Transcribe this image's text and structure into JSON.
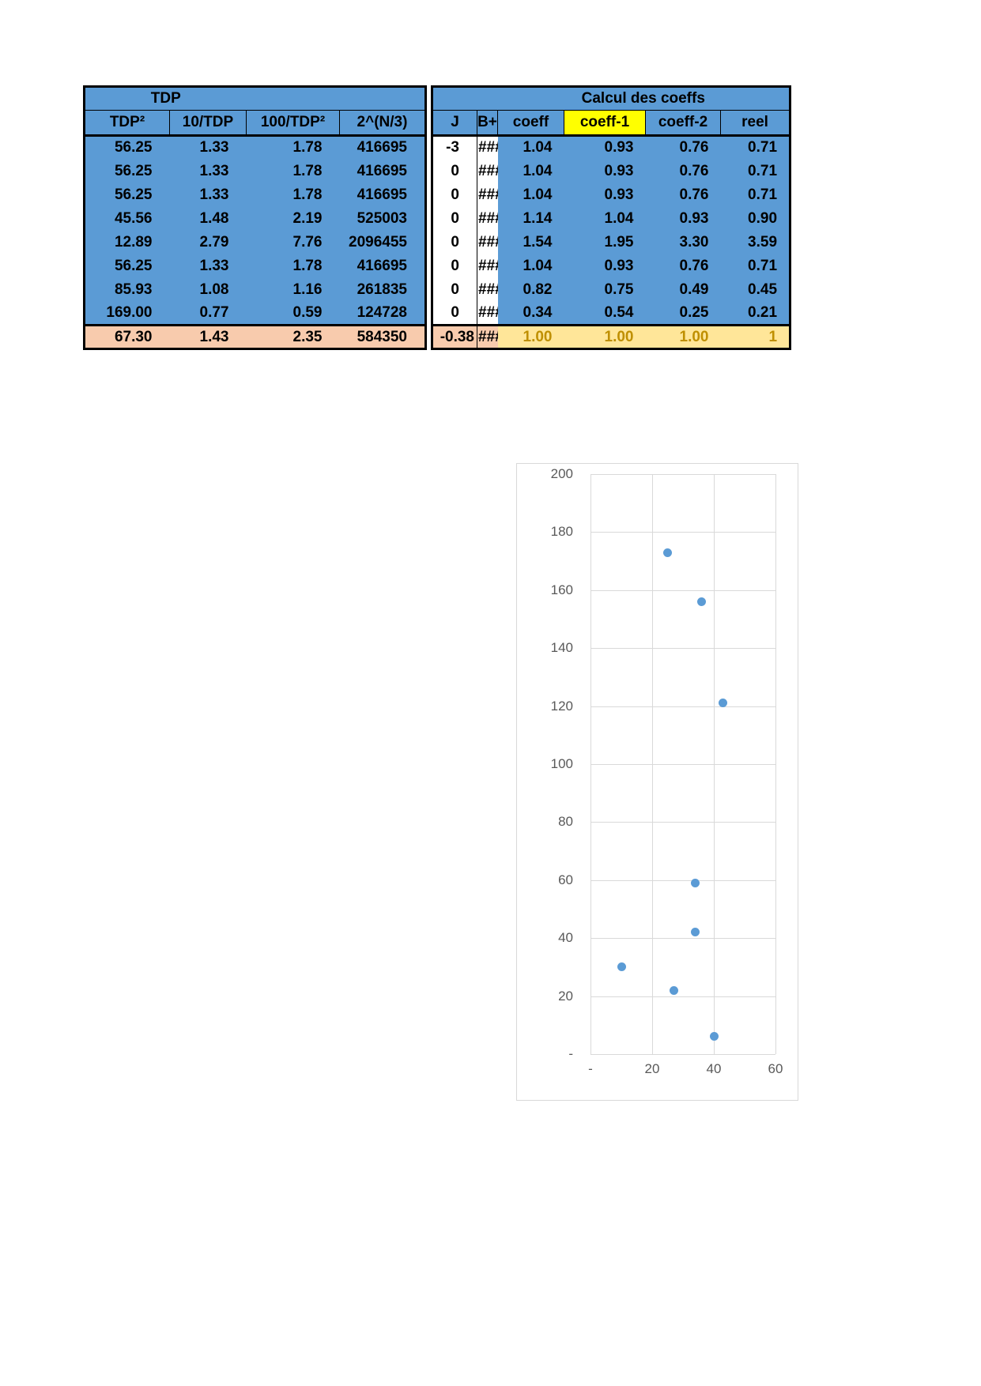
{
  "left_table": {
    "title": "TDP",
    "headers": [
      "TDP²",
      "10/TDP",
      "100/TDP²",
      "2^(N/3)"
    ],
    "rows": [
      [
        "56.25",
        "1.33",
        "1.78",
        "416695"
      ],
      [
        "56.25",
        "1.33",
        "1.78",
        "416695"
      ],
      [
        "56.25",
        "1.33",
        "1.78",
        "416695"
      ],
      [
        "45.56",
        "1.48",
        "2.19",
        "525003"
      ],
      [
        "12.89",
        "2.79",
        "7.76",
        "2096455"
      ],
      [
        "56.25",
        "1.33",
        "1.78",
        "416695"
      ],
      [
        "85.93",
        "1.08",
        "1.16",
        "261835"
      ],
      [
        "169.00",
        "0.77",
        "0.59",
        "124728"
      ]
    ],
    "footer": [
      "67.30",
      "1.43",
      "2.35",
      "584350"
    ]
  },
  "right_table": {
    "title": "Calcul des coeffs",
    "headers": [
      "J",
      "B+",
      "coeff",
      "coeff-1",
      "coeff-2",
      "reel"
    ],
    "highlighted_header": "coeff-1",
    "rows": [
      [
        "-3",
        "###",
        "1.04",
        "0.93",
        "0.76",
        "0.71"
      ],
      [
        "0",
        "###",
        "1.04",
        "0.93",
        "0.76",
        "0.71"
      ],
      [
        "0",
        "###",
        "1.04",
        "0.93",
        "0.76",
        "0.71"
      ],
      [
        "0",
        "###",
        "1.14",
        "1.04",
        "0.93",
        "0.90"
      ],
      [
        "0",
        "###",
        "1.54",
        "1.95",
        "3.30",
        "3.59"
      ],
      [
        "0",
        "###",
        "1.04",
        "0.93",
        "0.76",
        "0.71"
      ],
      [
        "0",
        "###",
        "0.82",
        "0.75",
        "0.49",
        "0.45"
      ],
      [
        "0",
        "###",
        "0.34",
        "0.54",
        "0.25",
        "0.21"
      ]
    ],
    "footer": [
      "-0.38",
      "###",
      "1.00",
      "1.00",
      "1.00",
      "1"
    ]
  },
  "colors": {
    "table_blue": "#5B9BD5",
    "footer_peach": "#F8CBAD",
    "footer_yellow": "#FFE699",
    "footer_gold_text": "#BF8F00",
    "highlight_yellow": "#FFFF00",
    "marker_blue": "#5B9BD5",
    "gridline": "#D9D9D9",
    "tick_text": "#595959"
  },
  "chart_data": {
    "type": "scatter",
    "title": "",
    "xlabel": "",
    "ylabel": "",
    "xlim": [
      0,
      60
    ],
    "ylim": [
      0,
      200
    ],
    "grid": true,
    "legend": "none",
    "points": [
      [
        25,
        173
      ],
      [
        36,
        156
      ],
      [
        43,
        121
      ],
      [
        34,
        59
      ],
      [
        34,
        42
      ],
      [
        10,
        30
      ],
      [
        27,
        22
      ],
      [
        40,
        6
      ]
    ],
    "x_ticks": [
      {
        "v": 0,
        "label": "-"
      },
      {
        "v": 20,
        "label": "20"
      },
      {
        "v": 40,
        "label": "40"
      },
      {
        "v": 60,
        "label": "60"
      }
    ],
    "y_ticks": [
      {
        "v": 200,
        "label": "200"
      },
      {
        "v": 180,
        "label": "180"
      },
      {
        "v": 160,
        "label": "160"
      },
      {
        "v": 140,
        "label": "140"
      },
      {
        "v": 120,
        "label": "120"
      },
      {
        "v": 100,
        "label": "100"
      },
      {
        "v": 80,
        "label": "80"
      },
      {
        "v": 60,
        "label": "60"
      },
      {
        "v": 40,
        "label": "40"
      },
      {
        "v": 20,
        "label": "20"
      },
      {
        "v": 0,
        "label": "-"
      }
    ]
  }
}
